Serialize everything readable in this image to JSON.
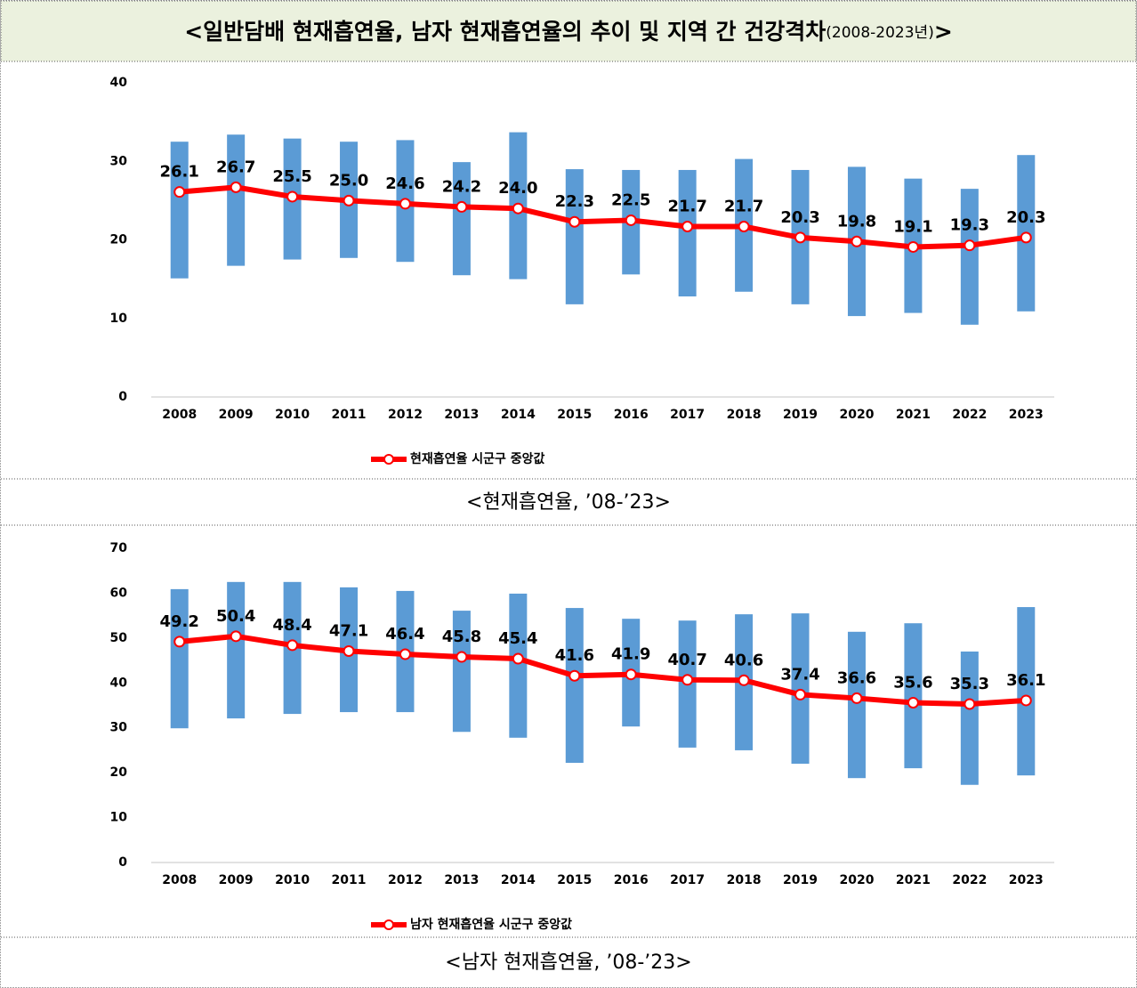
{
  "title": "<일반담배 현재흡연율, 남자 현재흡연율의 추이 및 지역 간 건강격차",
  "title_years": "(2008-2023년)",
  "title_end": ">",
  "chart_data": [
    {
      "type": "range_line",
      "caption": "<현재흡연율, ’08-’23>",
      "categories": [
        "2008",
        "2009",
        "2010",
        "2011",
        "2012",
        "2013",
        "2014",
        "2015",
        "2016",
        "2017",
        "2018",
        "2019",
        "2020",
        "2021",
        "2022",
        "2023"
      ],
      "range": {
        "color": "#5b9bd5",
        "low": [
          15.1,
          16.7,
          17.5,
          17.7,
          17.2,
          15.5,
          15.0,
          11.8,
          15.6,
          12.8,
          13.4,
          11.8,
          10.3,
          10.7,
          9.2,
          10.9
        ],
        "high": [
          32.5,
          33.4,
          32.9,
          32.5,
          32.7,
          29.9,
          33.7,
          29.0,
          28.9,
          28.9,
          30.3,
          28.9,
          29.3,
          27.8,
          26.5,
          30.8
        ]
      },
      "series": [
        {
          "name": "현재흡연율 시군구 중앙값",
          "color": "#ff0000",
          "values": [
            26.1,
            26.7,
            25.5,
            25.0,
            24.6,
            24.2,
            24.0,
            22.3,
            22.5,
            21.7,
            21.7,
            20.3,
            19.8,
            19.1,
            19.3,
            20.3
          ],
          "value_labels": [
            "26.1",
            "26.7",
            "25.5",
            "25.0",
            "24.6",
            "24.2",
            "24.0",
            "22.3",
            "22.5",
            "21.7",
            "21.7",
            "20.3",
            "19.8",
            "19.1",
            "19.3",
            "20.3"
          ]
        }
      ],
      "ylim": [
        0,
        40
      ],
      "yticks": [
        0,
        10,
        20,
        30,
        40
      ],
      "legend": "bottom"
    },
    {
      "type": "range_line",
      "caption": "<남자 현재흡연율, ’08-’23>",
      "categories": [
        "2008",
        "2009",
        "2010",
        "2011",
        "2012",
        "2013",
        "2014",
        "2015",
        "2016",
        "2017",
        "2018",
        "2019",
        "2020",
        "2021",
        "2022",
        "2023"
      ],
      "range": {
        "color": "#5b9bd5",
        "low": [
          29.9,
          32.1,
          33.1,
          33.5,
          33.5,
          29.1,
          27.8,
          22.2,
          30.3,
          25.6,
          25.0,
          22.0,
          18.8,
          21.0,
          17.3,
          19.4
        ],
        "high": [
          60.9,
          62.5,
          62.5,
          61.3,
          60.5,
          56.1,
          59.9,
          56.7,
          54.3,
          53.9,
          55.3,
          55.5,
          51.4,
          53.3,
          47.0,
          56.9
        ]
      },
      "series": [
        {
          "name": "남자 현재흡연율 시군구 중앙값",
          "color": "#ff0000",
          "values": [
            49.2,
            50.4,
            48.4,
            47.1,
            46.4,
            45.8,
            45.4,
            41.6,
            41.9,
            40.7,
            40.6,
            37.4,
            36.6,
            35.6,
            35.3,
            36.1
          ]
        }
      ],
      "ylim": [
        0,
        70
      ],
      "yticks": [
        0,
        10,
        20,
        30,
        40,
        50,
        60,
        70
      ],
      "legend": "bottom"
    }
  ]
}
